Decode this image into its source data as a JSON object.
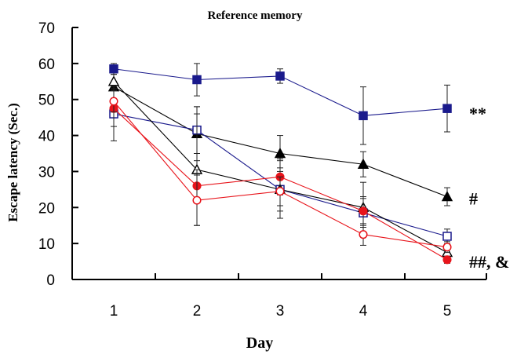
{
  "chart_data": {
    "type": "line",
    "title": "Reference memory",
    "xlabel": "Day",
    "ylabel": "Escape latency (Sec.)",
    "x": [
      1,
      2,
      3,
      4,
      5
    ],
    "ylim": [
      0,
      70
    ],
    "yticks": [
      0,
      10,
      20,
      30,
      40,
      50,
      60,
      70
    ],
    "grid": false,
    "series": [
      {
        "color": "#1a1a8c",
        "marker": "square-filled",
        "values": [
          58.5,
          55.5,
          56.5,
          45.5,
          47.5
        ],
        "errors": [
          1.5,
          4.5,
          2,
          8,
          6.5
        ]
      },
      {
        "color": "#000000",
        "marker": "triangle-filled",
        "values": [
          53.5,
          40.5,
          35,
          32,
          23
        ],
        "errors": [
          3.5,
          7.5,
          5,
          3.5,
          2.5
        ]
      },
      {
        "color": "#1a1a8c",
        "marker": "square-open",
        "values": [
          46,
          41.5,
          25,
          18.5,
          12
        ],
        "errors": [
          7.5,
          6.5,
          6,
          4,
          2
        ]
      },
      {
        "color": "#000000",
        "marker": "triangle-open",
        "values": [
          55,
          30.5,
          25,
          20,
          7.5
        ],
        "errors": [
          2,
          15.5,
          8,
          7,
          2
        ]
      },
      {
        "color": "#e8141b",
        "marker": "circle-filled",
        "values": [
          47.5,
          26,
          28.5,
          19,
          5.5
        ],
        "errors": [
          5,
          4.5,
          5,
          4,
          1
        ]
      },
      {
        "color": "#e8141b",
        "marker": "circle-open",
        "values": [
          49.5,
          22,
          24.5,
          12.5,
          9
        ],
        "errors": [
          3,
          7,
          4,
          3,
          1.5
        ]
      }
    ],
    "annotations": [
      {
        "text": "**",
        "at_x": 5,
        "at_y": 47.5
      },
      {
        "text": "#",
        "at_x": 5,
        "at_y": 23
      },
      {
        "text": "##, &",
        "at_x": 5,
        "at_y": 5.5
      }
    ]
  }
}
